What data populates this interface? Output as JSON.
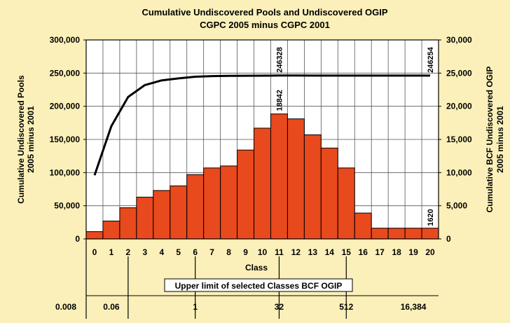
{
  "chart_data": {
    "type": "bar",
    "title": "Cumulative Undiscovered Pools and Undiscovered OGIP",
    "subtitle": "CGPC 2005 minus CGPC 2001",
    "xlabel": "Class",
    "ylabel_left_line1": "Cumulative Undiscovered Pools",
    "ylabel_left_line2": "2005 minus 2001",
    "ylabel_right_line1": "Cumulative BCF Undiscovered OGIP",
    "ylabel_right_line2": "2005 minus 2001",
    "categories": [
      "0",
      "1",
      "2",
      "3",
      "4",
      "5",
      "6",
      "7",
      "8",
      "9",
      "10",
      "11",
      "12",
      "13",
      "14",
      "15",
      "16",
      "17",
      "18",
      "19",
      "20"
    ],
    "y_left_lim": [
      0,
      300000
    ],
    "y_left_ticks": [
      "0",
      "50,000",
      "100,000",
      "150,000",
      "200,000",
      "250,000",
      "300,000"
    ],
    "y_right_lim": [
      0,
      30000
    ],
    "y_right_ticks": [
      "0",
      "5,000",
      "10,000",
      "15,000",
      "20,000",
      "25,000",
      "30,000"
    ],
    "grid": true,
    "series": [
      {
        "axis": "right",
        "kind": "bar",
        "color": "#e8491d",
        "values": [
          1100,
          2700,
          4700,
          6300,
          7300,
          8000,
          9700,
          10700,
          11000,
          13400,
          16700,
          18842,
          18100,
          15700,
          13700,
          10700,
          3900,
          1620,
          1620,
          1620,
          1620
        ]
      },
      {
        "axis": "left",
        "kind": "line",
        "color": "#000000",
        "values": [
          96000,
          170000,
          214000,
          232000,
          239000,
          242000,
          244500,
          245500,
          245800,
          246000,
          246100,
          246328,
          246300,
          246280,
          246270,
          246260,
          246255,
          246254,
          246254,
          246254,
          246254
        ]
      }
    ],
    "annotations": [
      {
        "text": "18842",
        "category": "11",
        "orientation": "vertical"
      },
      {
        "text": "246328",
        "category": "11",
        "orientation": "vertical"
      },
      {
        "text": "246254",
        "category": "20",
        "orientation": "vertical"
      },
      {
        "text": "1620",
        "category": "20",
        "orientation": "vertical"
      }
    ],
    "secondary_axis": {
      "label": "Upper limit of selected Classes BCF OGIP",
      "ticks": [
        {
          "text": "0.008",
          "category": "-0.5"
        },
        {
          "text": "0.06",
          "category": "1"
        },
        {
          "text": "1",
          "category": "6"
        },
        {
          "text": "32",
          "category": "11"
        },
        {
          "text": "512",
          "category": "15"
        },
        {
          "text": "16,384",
          "category": "19"
        }
      ],
      "dividers": [
        "0",
        "2.5",
        "6.5",
        "11.5",
        "15.5"
      ]
    }
  }
}
